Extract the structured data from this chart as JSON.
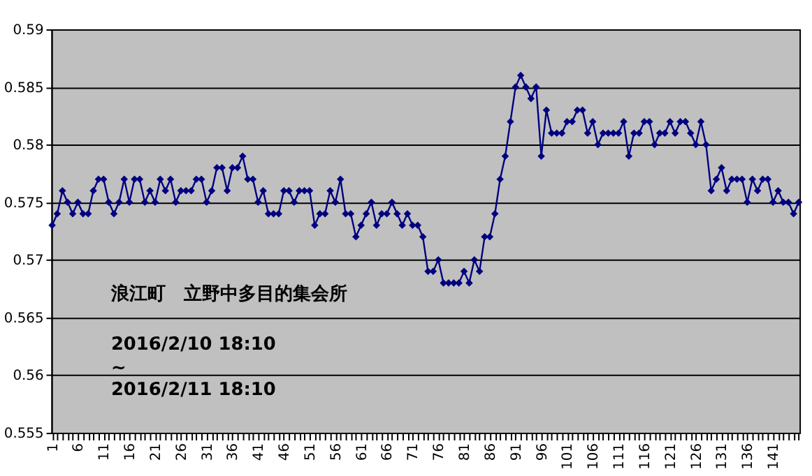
{
  "chart_data": {
    "type": "line",
    "categories": [
      "1",
      null,
      null,
      null,
      null,
      "6",
      null,
      null,
      null,
      null,
      "11",
      null,
      null,
      null,
      null,
      "16",
      null,
      null,
      null,
      null,
      "21",
      null,
      null,
      null,
      null,
      "26",
      null,
      null,
      null,
      null,
      "31",
      null,
      null,
      null,
      null,
      "36",
      null,
      null,
      null,
      null,
      "41",
      null,
      null,
      null,
      null,
      "46",
      null,
      null,
      null,
      null,
      "51",
      null,
      null,
      null,
      null,
      "56",
      null,
      null,
      null,
      null,
      "61",
      null,
      null,
      null,
      null,
      "66",
      null,
      null,
      null,
      null,
      "71",
      null,
      null,
      null,
      null,
      "76",
      null,
      null,
      null,
      null,
      "81",
      null,
      null,
      null,
      null,
      "86",
      null,
      null,
      null,
      null,
      "91",
      null,
      null,
      null,
      null,
      "96",
      null,
      null,
      null,
      null,
      "101",
      null,
      null,
      null,
      null,
      "106",
      null,
      null,
      null,
      null,
      "111",
      null,
      null,
      null,
      null,
      "116",
      null,
      null,
      null,
      null,
      "121",
      null,
      null,
      null,
      null,
      "126",
      null,
      null,
      null,
      null,
      "131",
      null,
      null,
      null,
      null,
      "136",
      null,
      null,
      null,
      null,
      "141",
      null,
      null,
      null,
      null,
      null
    ],
    "series": [
      {
        "color": "#000080",
        "values": [
          0.573,
          0.574,
          0.576,
          0.575,
          0.574,
          0.575,
          0.574,
          0.574,
          0.576,
          0.577,
          0.577,
          0.575,
          0.574,
          0.575,
          0.577,
          0.575,
          0.577,
          0.577,
          0.575,
          0.576,
          0.575,
          0.577,
          0.576,
          0.577,
          0.575,
          0.576,
          0.576,
          0.576,
          0.577,
          0.577,
          0.575,
          0.576,
          0.578,
          0.578,
          0.576,
          0.578,
          0.578,
          0.579,
          0.577,
          0.577,
          0.575,
          0.576,
          0.574,
          0.574,
          0.574,
          0.576,
          0.576,
          0.575,
          0.576,
          0.576,
          0.576,
          0.573,
          0.574,
          0.574,
          0.576,
          0.575,
          0.577,
          0.574,
          0.574,
          0.572,
          0.573,
          0.574,
          0.575,
          0.573,
          0.574,
          0.574,
          0.575,
          0.574,
          0.573,
          0.574,
          0.573,
          0.573,
          0.572,
          0.569,
          0.569,
          0.57,
          0.568,
          0.568,
          0.568,
          0.568,
          0.569,
          0.568,
          0.57,
          0.569,
          0.572,
          0.572,
          0.574,
          0.577,
          0.579,
          0.582,
          0.585,
          0.586,
          0.585,
          0.584,
          0.585,
          0.579,
          0.583,
          0.581,
          0.581,
          0.581,
          0.582,
          0.582,
          0.583,
          0.583,
          0.581,
          0.582,
          0.58,
          0.581,
          0.581,
          0.581,
          0.581,
          0.582,
          0.579,
          0.581,
          0.581,
          0.582,
          0.582,
          0.58,
          0.581,
          0.581,
          0.582,
          0.581,
          0.582,
          0.582,
          0.581,
          0.58,
          0.582,
          0.58,
          0.576,
          0.577,
          0.578,
          0.576,
          0.577,
          0.577,
          0.577,
          0.575,
          0.577,
          0.576,
          0.577,
          0.577,
          0.575,
          0.576,
          0.575,
          0.575,
          0.574,
          0.575
        ]
      }
    ],
    "ylim": [
      0.555,
      0.59
    ],
    "yticks": [
      0.555,
      0.56,
      0.565,
      0.57,
      0.575,
      0.58,
      0.585,
      0.59
    ],
    "grid": "y",
    "marker": "diamond",
    "line_style": "solid",
    "annotations": [
      "浪江町　立野中多目的集会所",
      "2016/2/10 18:10",
      "~",
      "2016/2/11 18:10"
    ]
  }
}
